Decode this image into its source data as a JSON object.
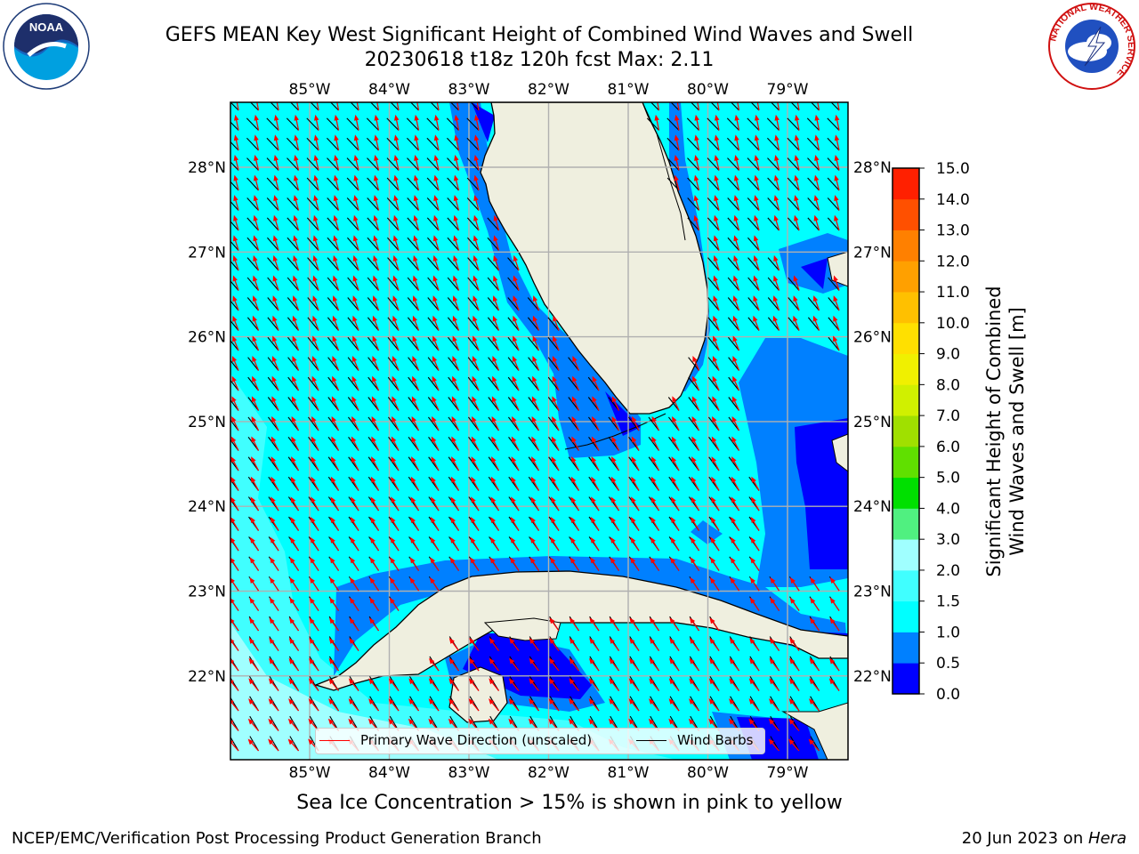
{
  "title_line1": "GEFS MEAN Key West Significant Height of Combined Wind Waves and Swell",
  "title_line2": "20230618 t18z 120h fcst   Max: 2.11",
  "logos": {
    "left": "NOAA",
    "right": "NATIONAL WEATHER SERVICE"
  },
  "map": {
    "lon_ticks": [
      "85°W",
      "84°W",
      "83°W",
      "82°W",
      "81°W",
      "80°W",
      "79°W"
    ],
    "lat_ticks": [
      "28°N",
      "27°N",
      "26°N",
      "25°N",
      "24°N",
      "23°N",
      "22°N"
    ],
    "lon_values": [
      -85,
      -84,
      -83,
      -82,
      -81,
      -80,
      -79
    ],
    "lat_values": [
      28,
      27,
      26,
      25,
      24,
      23,
      22
    ],
    "land_color": "#efefdf",
    "grid_color": "#b0b0b0"
  },
  "legend": {
    "wave_dir_label": "Primary Wave Direction (unscaled)",
    "wave_dir_color": "#ff0000",
    "wind_barbs_label": "Wind Barbs",
    "wind_barbs_color": "#000000"
  },
  "colorbar": {
    "label_line1": "Significant Height of Combined",
    "label_line2": "Wind Waves and Swell [m]",
    "ticks": [
      "0.0",
      "0.5",
      "1.0",
      "1.5",
      "2.0",
      "3.0",
      "4.0",
      "5.0",
      "6.0",
      "7.0",
      "8.0",
      "9.0",
      "10.0",
      "11.0",
      "12.0",
      "13.0",
      "14.0",
      "15.0"
    ],
    "colors": [
      "#0000ff",
      "#0080ff",
      "#00ffff",
      "#40ffff",
      "#a0ffff",
      "#50f080",
      "#00e000",
      "#60e000",
      "#a0e000",
      "#d0f000",
      "#f0f000",
      "#ffe000",
      "#ffc000",
      "#ffa000",
      "#ff8000",
      "#ff5000",
      "#ff2000"
    ]
  },
  "subtitle": "Sea Ice Concentration > 15% is shown in pink to yellow",
  "credit": "NCEP/EMC/Verification Post Processing Product Generation Branch",
  "date_text": "20 Jun 2023 on ",
  "host": "Hera"
}
